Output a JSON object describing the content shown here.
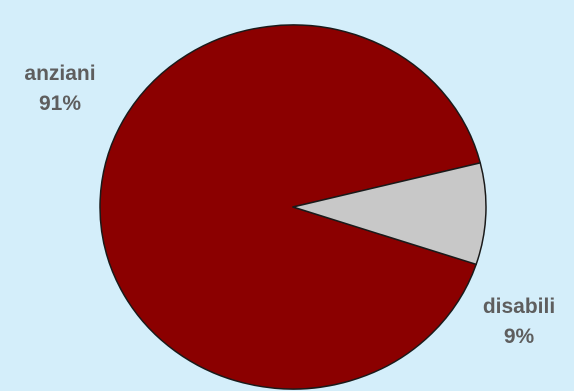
{
  "chart_data": {
    "type": "pie",
    "title": "",
    "slices": [
      {
        "label": "anziani",
        "percent_label": "91%",
        "value": 91,
        "color": "#8b0000"
      },
      {
        "label": "disabili",
        "percent_label": "9%",
        "value": 9,
        "color": "#c8c8c8"
      }
    ],
    "outline_color": "#1a1a1a",
    "legend": "none"
  }
}
